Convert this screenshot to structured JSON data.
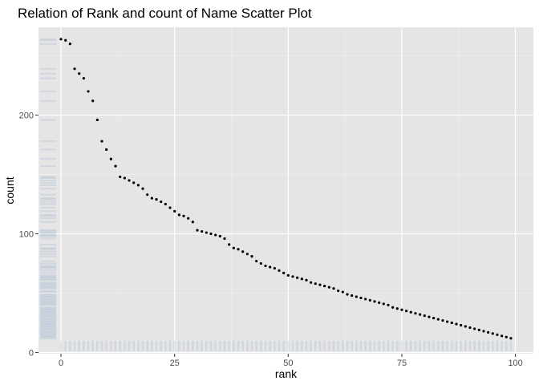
{
  "chart_data": {
    "type": "scatter",
    "title": "Relation of Rank and count of Name  Scatter Plot",
    "xlabel": "rank",
    "ylabel": "count",
    "xlim": [
      -4.95,
      103.95
    ],
    "ylim": [
      -1,
      274
    ],
    "x_ticks": [
      0,
      25,
      50,
      75,
      100
    ],
    "x_tick_labels": [
      "0",
      "25",
      "50",
      "75",
      "100"
    ],
    "y_ticks": [
      0,
      100,
      200
    ],
    "y_tick_labels": [
      "0",
      "100",
      "200"
    ],
    "grid": true,
    "legend": "none",
    "point_color": "#000000",
    "rug_color": "#4a78b8",
    "panel_background": "#e5e5e5",
    "points": {
      "x": [
        0,
        1,
        2,
        3,
        4,
        5,
        6,
        7,
        8,
        9,
        10,
        11,
        12,
        13,
        14,
        15,
        16,
        17,
        18,
        19,
        20,
        21,
        22,
        23,
        24,
        25,
        26,
        27,
        28,
        29,
        30,
        31,
        32,
        33,
        34,
        35,
        36,
        37,
        38,
        39,
        40,
        41,
        42,
        43,
        44,
        45,
        46,
        47,
        48,
        49,
        50,
        51,
        52,
        53,
        54,
        55,
        56,
        57,
        58,
        59,
        60,
        61,
        62,
        63,
        64,
        65,
        66,
        67,
        68,
        69,
        70,
        71,
        72,
        73,
        74,
        75,
        76,
        77,
        78,
        79,
        80,
        81,
        82,
        83,
        84,
        85,
        86,
        87,
        88,
        89,
        90,
        91,
        92,
        93,
        94,
        95,
        96,
        97,
        98,
        99
      ],
      "y": [
        264,
        263,
        260,
        239,
        235,
        231,
        220,
        212,
        196,
        178,
        171,
        163,
        157,
        148,
        147,
        145,
        143,
        141,
        138,
        133,
        130,
        129,
        127,
        125,
        122,
        119,
        116,
        115,
        113,
        110,
        103,
        102,
        101,
        100,
        99,
        98,
        96,
        91,
        88,
        87,
        85,
        83,
        81,
        77,
        75,
        73,
        72,
        71,
        69,
        67,
        65,
        64,
        63,
        62,
        61,
        59,
        58,
        57,
        56,
        55,
        54,
        52,
        51,
        49,
        48,
        47,
        46,
        45,
        44,
        43,
        42,
        41,
        40,
        38,
        37,
        36,
        35,
        34,
        33,
        32,
        31,
        30,
        29,
        28,
        27,
        26,
        25,
        24,
        23,
        22,
        21,
        20,
        19,
        18,
        17,
        16,
        15,
        14,
        13,
        12
      ]
    }
  }
}
